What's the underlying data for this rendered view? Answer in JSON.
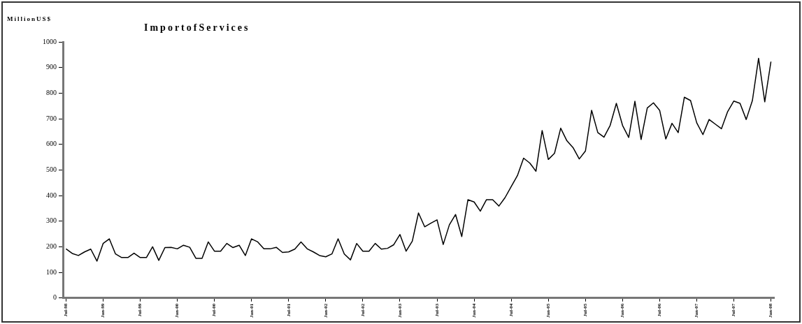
{
  "chart_data": {
    "type": "line",
    "title": "ImportofServices",
    "ylabel": "MillionUS$",
    "categories": [
      "Jul-98",
      null,
      null,
      null,
      null,
      null,
      "Jan-99",
      null,
      null,
      null,
      null,
      null,
      "Jul-99",
      null,
      null,
      null,
      null,
      null,
      "Jan-00",
      null,
      null,
      null,
      null,
      null,
      "Jul-00",
      null,
      null,
      null,
      null,
      null,
      "Jan-01",
      null,
      null,
      null,
      null,
      null,
      "Jul-01",
      null,
      null,
      null,
      null,
      null,
      "Jan-02",
      null,
      null,
      null,
      null,
      null,
      "Jul-02",
      null,
      null,
      null,
      null,
      null,
      "Jan-03",
      null,
      null,
      null,
      null,
      null,
      "Jul-03",
      null,
      null,
      null,
      null,
      null,
      "Jan-04",
      null,
      null,
      null,
      null,
      null,
      "Jul-04",
      null,
      null,
      null,
      null,
      null,
      "Jan-05",
      null,
      null,
      null,
      null,
      null,
      "Jul-05",
      null,
      null,
      null,
      null,
      null,
      "Jan-06",
      null,
      null,
      null,
      null,
      null,
      "Jul-06",
      null,
      null,
      null,
      null,
      null,
      "Jan-07",
      null,
      null,
      null,
      null,
      null,
      "Jul-07",
      null,
      null,
      null,
      null,
      null,
      "Jan-08"
    ],
    "series": [
      {
        "color": "#000000",
        "values": [
          192,
          174,
          166,
          180,
          191,
          144,
          213,
          231,
          172,
          158,
          158,
          175,
          158,
          158,
          200,
          147,
          197,
          198,
          192,
          206,
          198,
          155,
          155,
          219,
          183,
          183,
          213,
          197,
          206,
          166,
          231,
          219,
          192,
          192,
          198,
          178,
          180,
          191,
          219,
          192,
          180,
          166,
          161,
          172,
          231,
          172,
          149,
          213,
          183,
          183,
          213,
          191,
          194,
          208,
          248,
          183,
          222,
          332,
          278,
          292,
          305,
          209,
          286,
          326,
          240,
          384,
          375,
          339,
          384,
          384,
          359,
          392,
          435,
          478,
          546,
          527,
          495,
          654,
          541,
          565,
          663,
          614,
          587,
          543,
          574,
          733,
          646,
          628,
          674,
          760,
          674,
          627,
          768,
          619,
          742,
          762,
          733,
          621,
          682,
          646,
          784,
          771,
          684,
          638,
          697,
          679,
          661,
          728,
          769,
          760,
          697,
          771,
          936,
          766,
          923
        ]
      }
    ],
    "ylim": [
      0,
      1000
    ],
    "yticks": [
      0,
      100,
      200,
      300,
      400,
      500,
      600,
      700,
      800,
      900,
      1000
    ]
  }
}
